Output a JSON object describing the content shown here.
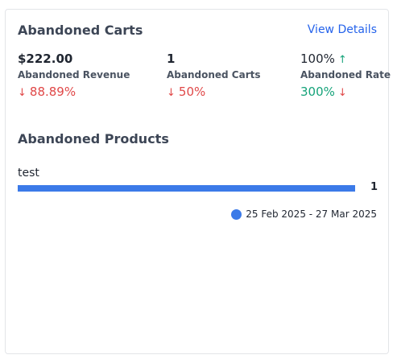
{
  "card": {
    "title": "Abandoned Carts",
    "view_details_label": "View Details"
  },
  "metrics": {
    "revenue": {
      "value": "$222.00",
      "label": "Abandoned Revenue",
      "change": "88.89%",
      "direction": "down",
      "arrow": "↓",
      "color": "#e04848"
    },
    "carts": {
      "value": "1",
      "label": "Abandoned Carts",
      "change": "50%",
      "direction": "down",
      "arrow": "↓",
      "color": "#e04848"
    },
    "rate": {
      "value": "100%",
      "value_arrow": "↑",
      "label": "Abandoned Rate",
      "change": "300%",
      "change_arrow": "↓",
      "value_color": "#e04848",
      "change_color": "#16a37a"
    }
  },
  "products": {
    "title": "Abandoned Products",
    "items": [
      {
        "name": "test",
        "count": "1",
        "fraction": 1.0
      }
    ],
    "legend": {
      "label": "25 Feb 2025 - 27 Mar 2025",
      "color": "#3b7ae8"
    }
  }
}
